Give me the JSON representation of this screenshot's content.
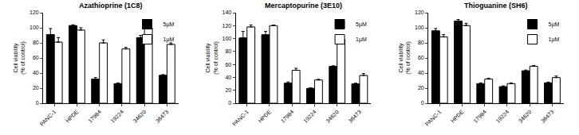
{
  "chart_data": [
    {
      "type": "bar",
      "title": "Azathioprine (1C8)",
      "ylabel": "Cell viability\n(% of control)",
      "categories": [
        "PANC-1",
        "HPDE",
        "17984",
        "19224",
        "34620",
        "36473"
      ],
      "series": [
        {
          "name": "5µM",
          "color": "#000000",
          "values": [
            91,
            103,
            32,
            26,
            87,
            37
          ],
          "errors": [
            8,
            1,
            2,
            1,
            3,
            1
          ]
        },
        {
          "name": "1µM",
          "color": "#ffffff",
          "values": [
            81,
            97,
            80,
            72,
            100,
            78
          ],
          "errors": [
            6,
            3,
            4,
            2,
            2,
            2
          ]
        }
      ],
      "ylim": [
        0,
        120
      ],
      "yticks": [
        0,
        20,
        40,
        60,
        80,
        100,
        120
      ],
      "grid": false,
      "legend": "upper right"
    },
    {
      "type": "bar",
      "title": "Mercaptopurine (3E10)",
      "ylabel": "Cell viability\n(% of control)",
      "categories": [
        "PANC-1",
        "HPDE",
        "17984",
        "19224",
        "34620",
        "36473"
      ],
      "series": [
        {
          "name": "5µM",
          "color": "#000000",
          "values": [
            101,
            106,
            31,
            23,
            57,
            30
          ],
          "errors": [
            10,
            5,
            2,
            1,
            1,
            1
          ]
        },
        {
          "name": "1µM",
          "color": "#ffffff",
          "values": [
            118,
            120,
            51,
            36,
            99,
            43
          ],
          "errors": [
            3,
            1,
            3,
            1,
            1,
            3
          ]
        }
      ],
      "ylim": [
        0,
        140
      ],
      "yticks": [
        0,
        20,
        40,
        60,
        80,
        100,
        120,
        140
      ],
      "grid": false,
      "legend": "upper right"
    },
    {
      "type": "bar",
      "title": "Thioguanine (SH6)",
      "ylabel": "Cell viability\n(% of control)",
      "categories": [
        "PANC-1",
        "HPDE",
        "17984",
        "19224",
        "34620",
        "36473"
      ],
      "series": [
        {
          "name": "5µM",
          "color": "#000000",
          "values": [
            96,
            109,
            26,
            22,
            43,
            27
          ],
          "errors": [
            3,
            2,
            1,
            1,
            1,
            1
          ]
        },
        {
          "name": "1µM",
          "color": "#ffffff",
          "values": [
            88,
            103,
            32,
            26,
            49,
            34
          ],
          "errors": [
            3,
            3,
            1,
            1,
            1,
            2
          ]
        }
      ],
      "ylim": [
        0,
        120
      ],
      "yticks": [
        0,
        20,
        40,
        60,
        80,
        100,
        120
      ],
      "grid": false,
      "legend": "upper right"
    }
  ]
}
